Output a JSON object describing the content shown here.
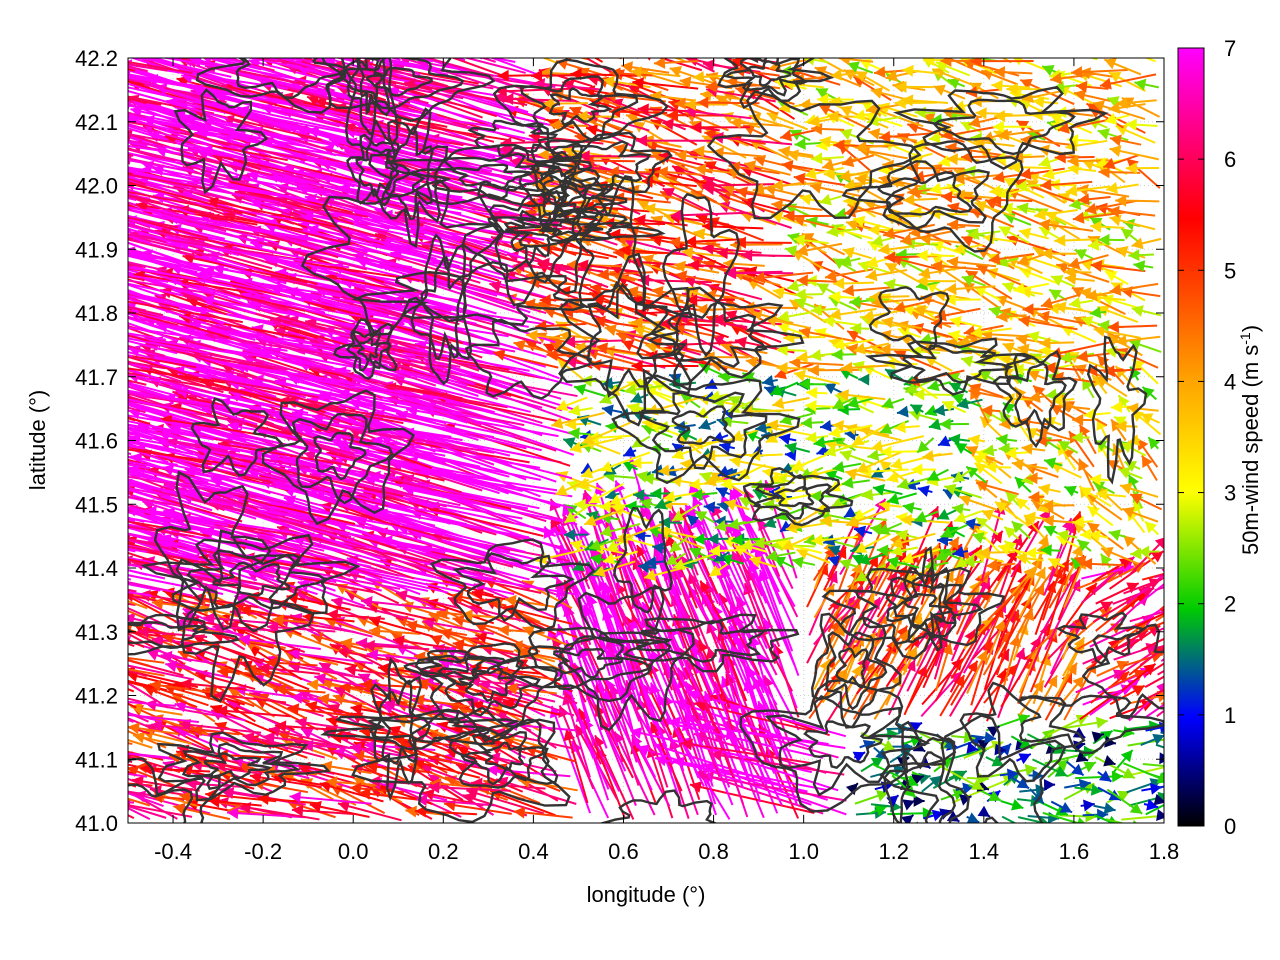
{
  "chart_data": {
    "type": "vector-field",
    "xlabel": "longitude (°)",
    "ylabel": "latitude (°)",
    "colorbar_label": "50m-wind speed (m s",
    "colorbar_label_sup": "-1",
    "colorbar_label_close": ")",
    "xlim": [
      -0.5,
      1.8
    ],
    "ylim": [
      41.0,
      42.2
    ],
    "clim": [
      0,
      7
    ],
    "x_ticks": [
      "-0.4",
      "-0.2",
      "0.0",
      "0.2",
      "0.4",
      "0.6",
      "0.8",
      "1.0",
      "1.2",
      "1.4",
      "1.6",
      "1.8"
    ],
    "x_tick_values": [
      -0.4,
      -0.2,
      0.0,
      0.2,
      0.4,
      0.6,
      0.8,
      1.0,
      1.2,
      1.4,
      1.6,
      1.8
    ],
    "y_ticks": [
      "41.0",
      "41.1",
      "41.2",
      "41.3",
      "41.4",
      "41.5",
      "41.6",
      "41.7",
      "41.8",
      "41.9",
      "42.0",
      "42.1",
      "42.2"
    ],
    "y_tick_values": [
      41.0,
      41.1,
      41.2,
      41.3,
      41.4,
      41.5,
      41.6,
      41.7,
      41.8,
      41.9,
      42.0,
      42.1,
      42.2
    ],
    "colorbar_ticks": [
      "0",
      "1",
      "2",
      "3",
      "4",
      "5",
      "6",
      "7"
    ],
    "colorbar_tick_values": [
      0,
      1,
      2,
      3,
      4,
      5,
      6,
      7
    ],
    "colorscale": [
      "#000000",
      "#0000ff",
      "#00cc00",
      "#ffff00",
      "#ffa500",
      "#ff0000",
      "#ff00ff"
    ],
    "grid": true,
    "contour_color": "#333333",
    "wind_regions": [
      {
        "x": [
          -0.5,
          0.45
        ],
        "y": [
          41.35,
          42.2
        ],
        "u": -0.33,
        "v": 0.06,
        "speed": 7.0
      },
      {
        "x": [
          0.45,
          1.0
        ],
        "y": [
          41.7,
          42.2
        ],
        "u": -0.12,
        "v": 0.02,
        "speed": 5.0
      },
      {
        "x": [
          1.0,
          1.8
        ],
        "y": [
          41.7,
          42.2
        ],
        "u": -0.08,
        "v": 0.01,
        "speed": 3.6
      },
      {
        "x": [
          0.5,
          1.4
        ],
        "y": [
          41.4,
          41.7
        ],
        "u": -0.06,
        "v": 0.0,
        "speed": 2.4
      },
      {
        "x": [
          1.4,
          1.8
        ],
        "y": [
          41.4,
          41.7
        ],
        "u": -0.05,
        "v": 0.02,
        "speed": 3.4
      },
      {
        "x": [
          -0.5,
          0.5
        ],
        "y": [
          41.0,
          41.35
        ],
        "u": -0.14,
        "v": 0.03,
        "speed": 5.6
      },
      {
        "x": [
          0.5,
          1.0
        ],
        "y": [
          41.0,
          41.4
        ],
        "u": -0.08,
        "v": 0.14,
        "speed": 7.0
      },
      {
        "x": [
          1.0,
          1.6
        ],
        "y": [
          41.15,
          41.4
        ],
        "u": 0.06,
        "v": 0.08,
        "speed": 5.2
      },
      {
        "x": [
          1.6,
          1.8
        ],
        "y": [
          41.15,
          41.4
        ],
        "u": 0.1,
        "v": 0.04,
        "speed": 5.8
      },
      {
        "x": [
          1.1,
          1.8
        ],
        "y": [
          41.0,
          41.15
        ],
        "u": 0.05,
        "v": 0.0,
        "speed": 1.4
      }
    ]
  }
}
